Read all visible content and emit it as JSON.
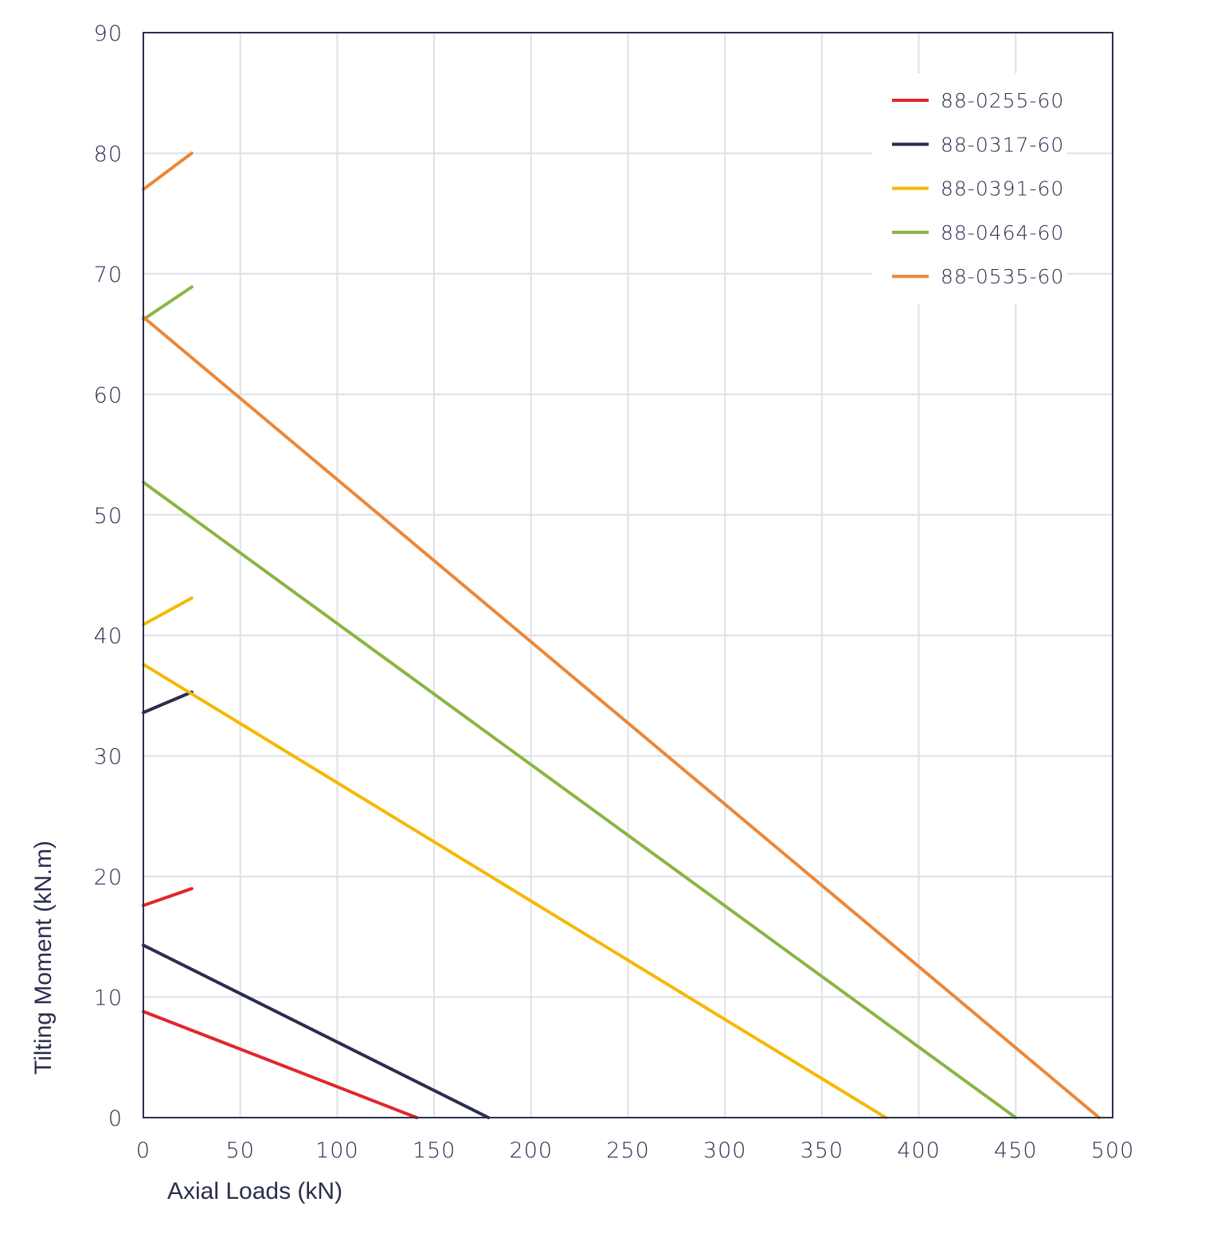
{
  "chart_data": {
    "type": "line",
    "title": "",
    "xlabel": "Axial Loads (kN)",
    "ylabel": "Tilting Moment (kN.m)",
    "xlim": [
      0,
      500
    ],
    "ylim": [
      0,
      90
    ],
    "xticks": [
      "0",
      "50",
      "100",
      "150",
      "200",
      "250",
      "300",
      "350",
      "400",
      "450",
      "500"
    ],
    "yticks": [
      "0",
      "10",
      "20",
      "30",
      "40",
      "50",
      "60",
      "70",
      "80",
      "90"
    ],
    "grid": true,
    "legend_position": "top-right",
    "series": [
      {
        "name": "88-0255-60",
        "color": "#e1262d",
        "segments": [
          [
            [
              0,
              8.8
            ],
            [
              141,
              0
            ]
          ],
          [
            [
              0,
              17.6
            ],
            [
              25,
              19.0
            ]
          ]
        ]
      },
      {
        "name": "88-0317-60",
        "color": "#2b2d4f",
        "segments": [
          [
            [
              0,
              14.3
            ],
            [
              178,
              0
            ]
          ],
          [
            [
              0,
              33.6
            ],
            [
              25,
              35.3
            ]
          ]
        ]
      },
      {
        "name": "88-0391-60",
        "color": "#f5b800",
        "segments": [
          [
            [
              0,
              37.6
            ],
            [
              383,
              0
            ]
          ],
          [
            [
              0,
              40.9
            ],
            [
              25,
              43.1
            ]
          ]
        ]
      },
      {
        "name": "88-0464-60",
        "color": "#8bb543",
        "segments": [
          [
            [
              0,
              52.7
            ],
            [
              450,
              0
            ]
          ],
          [
            [
              0,
              66.2
            ],
            [
              25,
              68.9
            ]
          ]
        ]
      },
      {
        "name": "88-0535-60",
        "color": "#ec8737",
        "segments": [
          [
            [
              0,
              66.4
            ],
            [
              493,
              0
            ]
          ],
          [
            [
              0,
              77.0
            ],
            [
              25,
              80.0
            ]
          ]
        ]
      }
    ]
  }
}
